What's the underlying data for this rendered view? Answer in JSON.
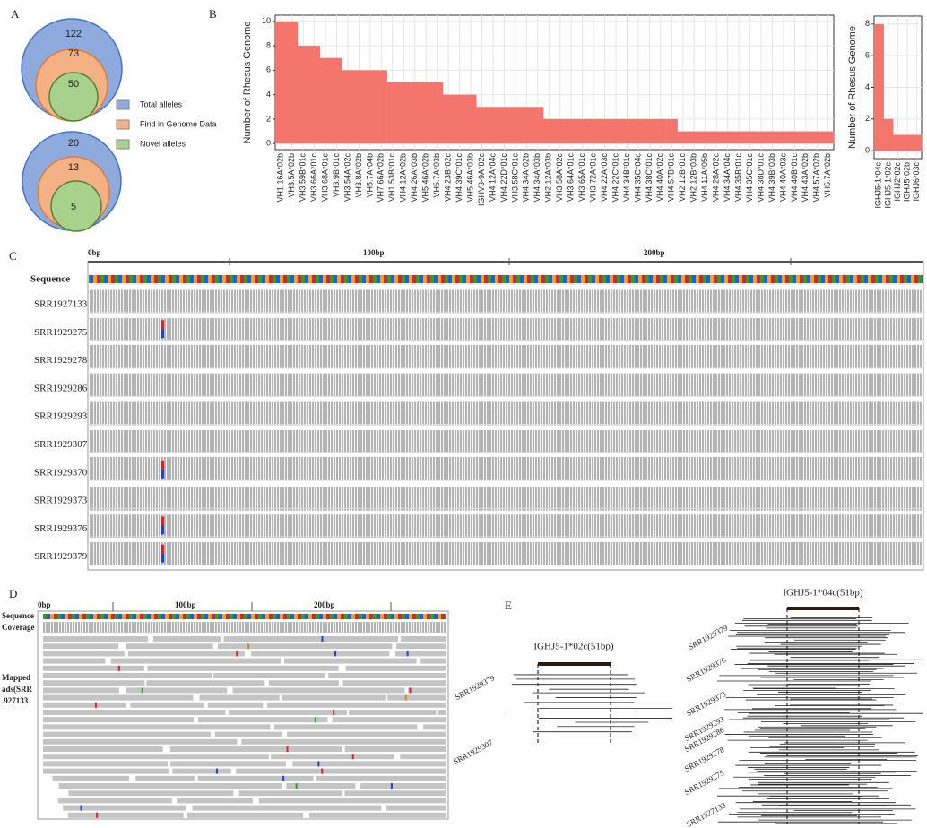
{
  "panel_labels": [
    "A",
    "B",
    "C",
    "D",
    "E"
  ],
  "venn": {
    "legend": [
      {
        "label": "Total alleles",
        "color": "#8faadc"
      },
      {
        "label": "Find in Genome Data",
        "color": "#f4b183"
      },
      {
        "label": "Novel alleles",
        "color": "#a9d18e"
      }
    ],
    "top": [
      "122",
      "73",
      "50"
    ],
    "bottom": [
      "20",
      "13",
      "5"
    ]
  },
  "chart_data": [
    {
      "type": "bar",
      "y_label": "Number of Rhesus Genome",
      "categories": [
        "VH1.16A*02b",
        "VH3.5A*02b",
        "VH3.59B*01c",
        "VH3.66A*01c",
        "VH3.68A*01c",
        "VH3.9B*01c",
        "VH3.54A*02c",
        "VH3.8A*02b",
        "VH5.7A*04b",
        "VH7.66A*02b",
        "VH1.53B*01c",
        "VH4.12A*02b",
        "VH4.26A*03b",
        "VH5.46A*02b",
        "VH5.7A*03b",
        "VH4.23B*02c",
        "VH4.39C*01c",
        "VH5.46A*03b",
        "IGHV3-9A*02c",
        "VH4.12A*04c",
        "VH4.22D*01c",
        "VH3.58C*01c",
        "VH4.34A*02b",
        "VH4.34A*03b",
        "VH2.12A*03b",
        "VH3.58A*02c",
        "VH3.64A*01c",
        "VH3.65A*01c",
        "VH3.72A*01c",
        "VH4.22A*03c",
        "VH4.22C*01c",
        "VH4.34B*01c",
        "VH4.35C*04c",
        "VH4.38C*01c",
        "VH4.40A*02c",
        "VH4.57B*01c",
        "VH2.12B*01c",
        "VH2.12B*03b",
        "VH4.11A*05b",
        "VH4.28A*02c",
        "VH4.34A*04c",
        "VH4.35B*01c",
        "VH4.35C*01c",
        "VH4.38D*01c",
        "VH4.39B*03b",
        "VH4.40A*03c",
        "VH4.40B*01c",
        "VH4.43A*02b",
        "VH4.57A*02b",
        "VH5.7A*02b"
      ],
      "values": [
        10,
        10,
        8,
        8,
        7,
        7,
        6,
        6,
        6,
        6,
        5,
        5,
        5,
        5,
        5,
        4,
        4,
        4,
        3,
        3,
        3,
        3,
        3,
        3,
        2,
        2,
        2,
        2,
        2,
        2,
        2,
        2,
        2,
        2,
        2,
        2,
        1,
        1,
        1,
        1,
        1,
        1,
        1,
        1,
        1,
        1,
        1,
        1,
        1,
        1
      ],
      "color": "#f4756b",
      "ylim": [
        -0.5,
        10.5
      ],
      "yticks": [
        0,
        2,
        4,
        6,
        8,
        10
      ],
      "grid": true
    },
    {
      "type": "bar",
      "y_label": "Number of Rhesus Genome",
      "categories": [
        "IGHJ5-1*04c",
        "IGHJ5-1*02c",
        "IGHJ2*02c",
        "IGHJ5*02b",
        "IGHJ6*03c"
      ],
      "values": [
        8,
        2,
        1,
        1,
        1
      ],
      "color": "#f4756b",
      "ylim": [
        -0.5,
        8.5
      ],
      "yticks": [
        0,
        2,
        4,
        6,
        8
      ],
      "grid": true
    }
  ],
  "igv": {
    "ruler": [
      "0bp",
      "100bp",
      "200bp"
    ],
    "sequence_label": "Sequence",
    "tracks": [
      "SRR1927133",
      "SRR1929275",
      "SRR1929278",
      "SRR1929286",
      "SRR1929293",
      "SRR1929307",
      "SRR1929370",
      "SRR1929373",
      "SRR1929376",
      "SRR1929379"
    ]
  },
  "reads": {
    "ruler": [
      "0bp",
      "100bp",
      "200bp"
    ],
    "labels": [
      "Sequence",
      "Coverage",
      "Mapped",
      "ads(SRR",
      ".927133"
    ]
  },
  "mapping": {
    "left_title": "IGHJ5-1*02c(51bp)",
    "right_title": "IGHJ5-1*04c(51bp)",
    "left_samples": [
      "SRR1929379",
      "SRR1929307"
    ],
    "right_samples": [
      "SRR1929379",
      "SRR1929376",
      "SRR1929373",
      "SRR1929293",
      "SRR1929286",
      "SRR1929278",
      "SRR1929275",
      "SRR1927133"
    ]
  }
}
